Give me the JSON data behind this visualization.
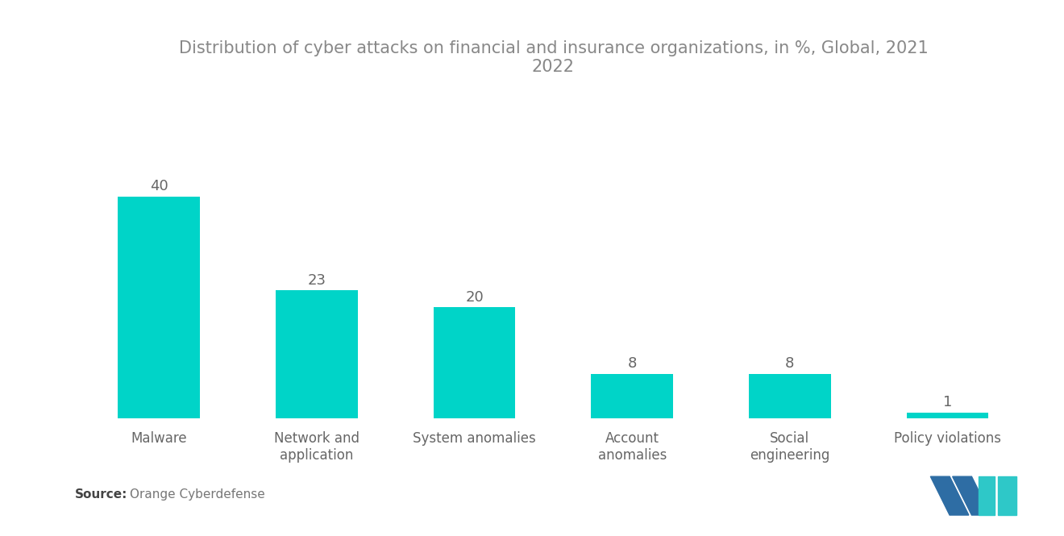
{
  "title": "Distribution of cyber attacks on financial and insurance organizations, in %, Global, 2021\n2022",
  "categories": [
    "Malware",
    "Network and\napplication",
    "System anomalies",
    "Account\nanomalies",
    "Social\nengineering",
    "Policy violations"
  ],
  "values": [
    40,
    23,
    20,
    8,
    8,
    1
  ],
  "bar_color": "#00D4C8",
  "background_color": "#ffffff",
  "title_color": "#888888",
  "title_fontsize": 15,
  "value_fontsize": 13,
  "value_color": "#666666",
  "xlabel_color": "#666666",
  "xlabel_fontsize": 12,
  "source_bold": "Source:",
  "source_text": "  Orange Cyberdefense",
  "ylim": [
    0,
    58
  ],
  "bar_width": 0.52
}
